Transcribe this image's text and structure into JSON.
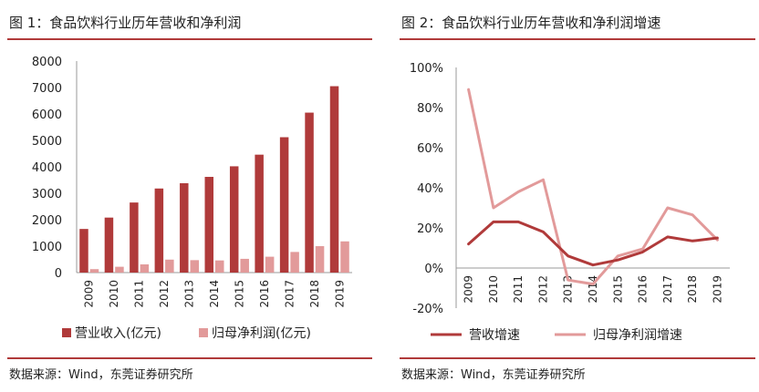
{
  "colors": {
    "primary": "#b03a3a",
    "secondary": "#e29a9a",
    "rule": "#b03a3a"
  },
  "charts": [
    {
      "title": "图 1：食品饮料行业历年营收和净利润",
      "source": "数据来源：Wind，东莞证券研究所"
    },
    {
      "title": "图 2：食品饮料行业历年营收和净利润增速",
      "source": "数据来源：Wind，东莞证券研究所"
    }
  ],
  "chart_data": [
    {
      "type": "bar",
      "title": "图 1：食品饮料行业历年营收和净利润",
      "categories": [
        "2009",
        "2010",
        "2011",
        "2012",
        "2013",
        "2014",
        "2015",
        "2016",
        "2017",
        "2018",
        "2019"
      ],
      "series": [
        {
          "name": "营业收入(亿元)",
          "values": [
            1650,
            2080,
            2650,
            3180,
            3380,
            3620,
            4020,
            4460,
            5120,
            6050,
            7050
          ]
        },
        {
          "name": "归母净利润(亿元)",
          "values": [
            130,
            220,
            310,
            490,
            470,
            460,
            520,
            600,
            780,
            1000,
            1180
          ]
        }
      ],
      "ylim": [
        0,
        8000
      ],
      "yticks": [
        "0",
        "1000",
        "2000",
        "3000",
        "4000",
        "5000",
        "6000",
        "7000",
        "8000"
      ],
      "grid": false,
      "legend": "bottom"
    },
    {
      "type": "line",
      "title": "图 2：食品饮料行业历年营收和净利润增速",
      "categories": [
        "2009",
        "2010",
        "2011",
        "2012",
        "2013",
        "2014",
        "2015",
        "2016",
        "2017",
        "2018",
        "2019"
      ],
      "series": [
        {
          "name": "营收增速",
          "values": [
            12,
            23,
            23,
            18,
            6,
            1.5,
            4,
            8,
            15.5,
            13.5,
            15
          ]
        },
        {
          "name": "归母净利润增速",
          "values": [
            89,
            30,
            38,
            44,
            -6,
            -8,
            6,
            9.5,
            30,
            26.5,
            14
          ]
        }
      ],
      "ylim": [
        -20,
        100
      ],
      "yticks": [
        "-20%",
        "0%",
        "20%",
        "40%",
        "60%",
        "80%",
        "100%"
      ],
      "grid": false,
      "legend": "bottom"
    }
  ]
}
